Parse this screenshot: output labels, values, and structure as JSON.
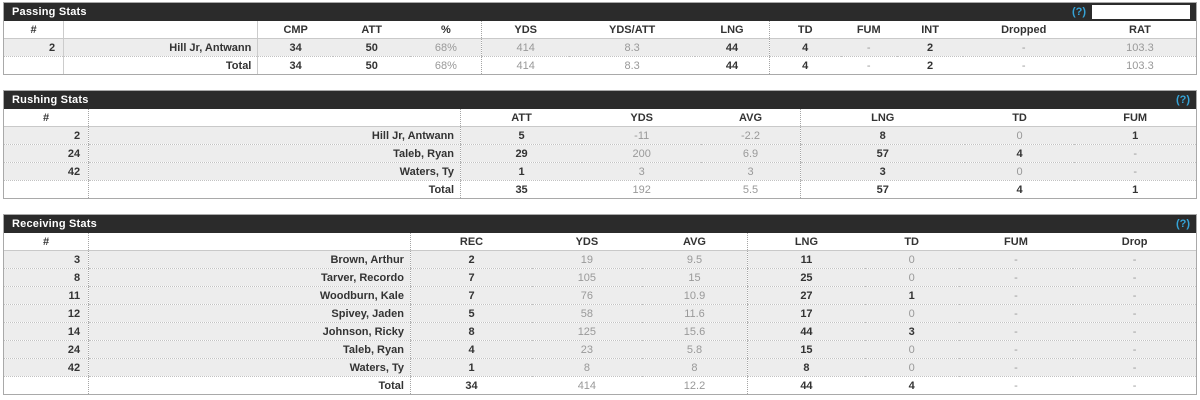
{
  "colors": {
    "title_bar_bg": "#2b2b2b",
    "title_bar_text": "#ffffff",
    "help_link": "#35a3d7",
    "row_bg": "#ededed",
    "strong_text": "#333333",
    "muted_text": "#999999"
  },
  "tables": [
    {
      "id": "passing",
      "title": "Passing Stats",
      "help_label": "(?)",
      "has_filter_box": true,
      "columns": [
        "#",
        "",
        "CMP",
        "ATT",
        "%",
        "YDS",
        "YDS/ATT",
        "LNG",
        "TD",
        "FUM",
        "INT",
        "Dropped",
        "RAT"
      ],
      "strong_columns": [
        "CMP",
        "ATT",
        "LNG",
        "TD",
        "FUM",
        "INT"
      ],
      "rows": [
        {
          "num": "2",
          "name": "Hill Jr, Antwann",
          "values": [
            "34",
            "50",
            "68%",
            "414",
            "8.3",
            "44",
            "4",
            "-",
            "2",
            "-",
            "103.3"
          ]
        }
      ],
      "total": {
        "label": "Total",
        "values": [
          "34",
          "50",
          "68%",
          "414",
          "8.3",
          "44",
          "4",
          "-",
          "2",
          "-",
          "103.3"
        ]
      }
    },
    {
      "id": "rushing",
      "title": "Rushing Stats",
      "help_label": "(?)",
      "has_filter_box": false,
      "columns": [
        "#",
        "",
        "ATT",
        "YDS",
        "AVG",
        "LNG",
        "TD",
        "FUM"
      ],
      "strong_columns": [
        "ATT",
        "LNG",
        "TD",
        "FUM"
      ],
      "rows": [
        {
          "num": "2",
          "name": "Hill Jr, Antwann",
          "values": [
            "5",
            "-11",
            "-2.2",
            "8",
            "0",
            "1"
          ]
        },
        {
          "num": "24",
          "name": "Taleb, Ryan",
          "values": [
            "29",
            "200",
            "6.9",
            "57",
            "4",
            "-"
          ]
        },
        {
          "num": "42",
          "name": "Waters, Ty",
          "values": [
            "1",
            "3",
            "3",
            "3",
            "0",
            "-"
          ]
        }
      ],
      "total": {
        "label": "Total",
        "values": [
          "35",
          "192",
          "5.5",
          "57",
          "4",
          "1"
        ]
      }
    },
    {
      "id": "receiving",
      "title": "Receiving Stats",
      "help_label": "(?)",
      "has_filter_box": false,
      "columns": [
        "#",
        "",
        "REC",
        "YDS",
        "AVG",
        "LNG",
        "TD",
        "FUM",
        "Drop"
      ],
      "strong_columns": [
        "REC",
        "LNG",
        "TD",
        "FUM",
        "Drop"
      ],
      "rows": [
        {
          "num": "3",
          "name": "Brown, Arthur",
          "values": [
            "2",
            "19",
            "9.5",
            "11",
            "0",
            "-",
            "-"
          ]
        },
        {
          "num": "8",
          "name": "Tarver, Recordo",
          "values": [
            "7",
            "105",
            "15",
            "25",
            "0",
            "-",
            "-"
          ]
        },
        {
          "num": "11",
          "name": "Woodburn, Kale",
          "values": [
            "7",
            "76",
            "10.9",
            "27",
            "1",
            "-",
            "-"
          ]
        },
        {
          "num": "12",
          "name": "Spivey, Jaden",
          "values": [
            "5",
            "58",
            "11.6",
            "17",
            "0",
            "-",
            "-"
          ]
        },
        {
          "num": "14",
          "name": "Johnson, Ricky",
          "values": [
            "8",
            "125",
            "15.6",
            "44",
            "3",
            "-",
            "-"
          ]
        },
        {
          "num": "24",
          "name": "Taleb, Ryan",
          "values": [
            "4",
            "23",
            "5.8",
            "15",
            "0",
            "-",
            "-"
          ]
        },
        {
          "num": "42",
          "name": "Waters, Ty",
          "values": [
            "1",
            "8",
            "8",
            "8",
            "0",
            "-",
            "-"
          ]
        }
      ],
      "total": {
        "label": "Total",
        "values": [
          "34",
          "414",
          "12.2",
          "44",
          "4",
          "-",
          "-"
        ]
      }
    }
  ]
}
